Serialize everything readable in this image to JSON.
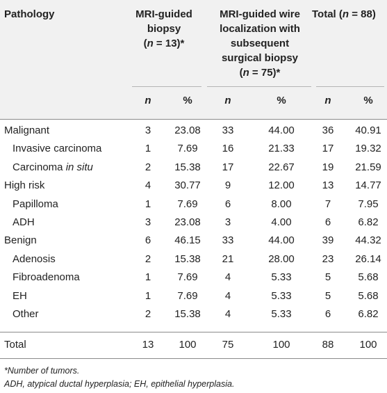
{
  "header": {
    "pathology": "Pathology",
    "col1_lines": [
      "MRI-guided",
      "biopsy"
    ],
    "col1_n_prefix": "(",
    "col1_n_var": "n",
    "col1_n_rest": " = 13)*",
    "col2_lines": [
      "MRI-guided wire",
      "localization with",
      "subsequent",
      "surgical biopsy"
    ],
    "col2_n_prefix": "(",
    "col2_n_var": "n",
    "col2_n_rest": " = 75)*",
    "col3_prefix": "Total (",
    "col3_n_var": "n",
    "col3_rest": " = 88)",
    "sub_n": "n",
    "sub_pct": "%"
  },
  "rows": [
    {
      "label": "Malignant",
      "indent": false,
      "values": [
        "3",
        "23.08",
        "33",
        "44.00",
        "36",
        "40.91"
      ]
    },
    {
      "label": "Invasive carcinoma",
      "indent": true,
      "values": [
        "1",
        "7.69",
        "16",
        "21.33",
        "17",
        "19.32"
      ]
    },
    {
      "label": "Carcinoma ",
      "label_italic": "in situ",
      "indent": true,
      "values": [
        "2",
        "15.38",
        "17",
        "22.67",
        "19",
        "21.59"
      ]
    },
    {
      "label": "High risk",
      "indent": false,
      "values": [
        "4",
        "30.77",
        "9",
        "12.00",
        "13",
        "14.77"
      ]
    },
    {
      "label": "Papilloma",
      "indent": true,
      "values": [
        "1",
        "7.69",
        "6",
        "8.00",
        "7",
        "7.95"
      ]
    },
    {
      "label": "ADH",
      "indent": true,
      "values": [
        "3",
        "23.08",
        "3",
        "4.00",
        "6",
        "6.82"
      ]
    },
    {
      "label": "Benign",
      "indent": false,
      "values": [
        "6",
        "46.15",
        "33",
        "44.00",
        "39",
        "44.32"
      ]
    },
    {
      "label": "Adenosis",
      "indent": true,
      "values": [
        "2",
        "15.38",
        "21",
        "28.00",
        "23",
        "26.14"
      ]
    },
    {
      "label": "Fibroadenoma",
      "indent": true,
      "values": [
        "1",
        "7.69",
        "4",
        "5.33",
        "5",
        "5.68"
      ]
    },
    {
      "label": "EH",
      "indent": true,
      "values": [
        "1",
        "7.69",
        "4",
        "5.33",
        "5",
        "5.68"
      ]
    },
    {
      "label": "Other",
      "indent": true,
      "values": [
        "2",
        "15.38",
        "4",
        "5.33",
        "6",
        "6.82"
      ]
    }
  ],
  "total_row": {
    "label": "Total",
    "values": [
      "13",
      "100",
      "75",
      "100",
      "88",
      "100"
    ]
  },
  "footnotes": [
    "*Number of tumors.",
    "ADH, atypical ductal hyperplasia; EH, epithelial hyperplasia."
  ]
}
